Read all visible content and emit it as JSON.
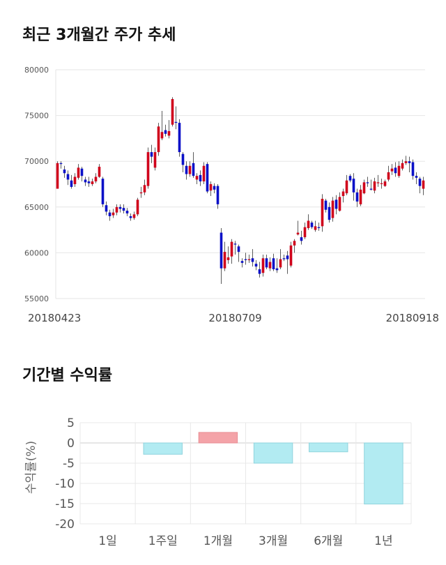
{
  "titles": {
    "price_trend": "최근 3개월간 주가 추세",
    "period_returns": "기간별 수익률"
  },
  "colors": {
    "up": "#d0021b",
    "down": "#0a10c8",
    "bar_positive": "#f4a3a8",
    "bar_negative": "#b2ebf2"
  },
  "chart_data": [
    {
      "type": "candlestick",
      "title": "최근 3개월간 주가 추세",
      "ylim": [
        55000,
        80000
      ],
      "y_ticks": [
        55000,
        60000,
        65000,
        70000,
        75000,
        80000
      ],
      "x_tick_labels": [
        {
          "label": "20180423",
          "index": 0
        },
        {
          "label": "20180709",
          "index": 51
        },
        {
          "label": "20180918",
          "index": 105
        }
      ],
      "grid": true,
      "candles": [
        [
          67000,
          69800,
          70000,
          67000
        ],
        [
          69800,
          69700,
          70000,
          69200
        ],
        [
          69100,
          68700,
          69500,
          68200
        ],
        [
          68600,
          68000,
          69000,
          67400
        ],
        [
          67900,
          67200,
          68500,
          67000
        ],
        [
          67500,
          68300,
          68700,
          67200
        ],
        [
          68200,
          69300,
          69700,
          68000
        ],
        [
          69200,
          68400,
          69400,
          67800
        ],
        [
          68000,
          67700,
          68300,
          67300
        ],
        [
          67800,
          67600,
          68300,
          67200
        ],
        [
          67500,
          67800,
          68100,
          67300
        ],
        [
          67800,
          68300,
          68700,
          67600
        ],
        [
          68300,
          69400,
          69700,
          68200
        ],
        [
          68100,
          65300,
          68300,
          65000
        ],
        [
          65200,
          64500,
          65600,
          64100
        ],
        [
          64400,
          64000,
          64700,
          63500
        ],
        [
          64100,
          64400,
          64800,
          63800
        ],
        [
          64400,
          65000,
          65300,
          64100
        ],
        [
          65000,
          64800,
          65300,
          64400
        ],
        [
          64900,
          64600,
          65300,
          64300
        ],
        [
          64600,
          64300,
          64900,
          64000
        ],
        [
          64000,
          63800,
          64300,
          63500
        ],
        [
          63800,
          64200,
          64500,
          63600
        ],
        [
          64200,
          65800,
          66000,
          64000
        ],
        [
          66500,
          66600,
          67200,
          66000
        ],
        [
          66600,
          67400,
          68000,
          66300
        ],
        [
          67300,
          71000,
          71500,
          67000
        ],
        [
          71000,
          70500,
          71800,
          69800
        ],
        [
          69300,
          71000,
          71500,
          69000
        ],
        [
          71000,
          73800,
          74200,
          70600
        ],
        [
          72500,
          73200,
          75500,
          72300
        ],
        [
          73400,
          73000,
          74000,
          72700
        ],
        [
          72800,
          73300,
          74500,
          72500
        ],
        [
          74000,
          76800,
          77000,
          73800
        ],
        [
          74300,
          74200,
          76000,
          73500
        ],
        [
          74200,
          71000,
          74600,
          70500
        ],
        [
          70800,
          69600,
          71000,
          68800
        ],
        [
          69500,
          68600,
          70000,
          68000
        ],
        [
          68600,
          69500,
          70000,
          68300
        ],
        [
          69800,
          68400,
          71000,
          68200
        ],
        [
          68000,
          68400,
          68700,
          67500
        ],
        [
          68500,
          67800,
          69000,
          67300
        ],
        [
          67800,
          69500,
          69900,
          67500
        ],
        [
          69700,
          66700,
          69900,
          66500
        ],
        [
          66800,
          67500,
          67800,
          66200
        ],
        [
          67300,
          66900,
          67600,
          66500
        ],
        [
          67300,
          65300,
          67500,
          64800
        ],
        [
          62200,
          58300,
          62700,
          56600
        ],
        [
          58300,
          60100,
          61200,
          58000
        ],
        [
          59200,
          59500,
          60700,
          58800
        ],
        [
          59600,
          61200,
          61500,
          58800
        ],
        [
          61000,
          60900,
          61300,
          59800
        ],
        [
          60700,
          60100,
          60900,
          59000
        ],
        [
          59100,
          58900,
          59400,
          58400
        ],
        [
          59300,
          59200,
          60000,
          58700
        ],
        [
          59200,
          59300,
          59800,
          58900
        ],
        [
          59400,
          59000,
          60400,
          58500
        ],
        [
          58800,
          58500,
          59200,
          58100
        ],
        [
          58200,
          57700,
          59000,
          57300
        ],
        [
          57800,
          59400,
          59800,
          57400
        ],
        [
          59400,
          58400,
          59800,
          58200
        ],
        [
          58300,
          59000,
          59500,
          58000
        ],
        [
          59400,
          58200,
          59900,
          58000
        ],
        [
          58300,
          58100,
          59400,
          57800
        ],
        [
          58400,
          59300,
          60400,
          58200
        ],
        [
          59400,
          59300,
          59800,
          59100
        ],
        [
          59700,
          59300,
          60200,
          57700
        ],
        [
          58600,
          60800,
          61200,
          58400
        ],
        [
          60800,
          61300,
          61500,
          60000
        ],
        [
          62000,
          62200,
          63500,
          61900
        ],
        [
          61700,
          61300,
          62400,
          60900
        ],
        [
          61700,
          62800,
          63300,
          61500
        ],
        [
          62700,
          63500,
          64200,
          62500
        ],
        [
          63300,
          62800,
          63500,
          62600
        ],
        [
          62500,
          62900,
          63500,
          62300
        ],
        [
          62800,
          62700,
          63300,
          62400
        ],
        [
          62900,
          65900,
          66400,
          62300
        ],
        [
          65700,
          64700,
          65900,
          64400
        ],
        [
          65000,
          63600,
          65500,
          63300
        ],
        [
          63800,
          65700,
          66100,
          63400
        ],
        [
          65800,
          64800,
          66300,
          64200
        ],
        [
          64600,
          66100,
          66600,
          64500
        ],
        [
          66200,
          66700,
          67000,
          65500
        ],
        [
          66500,
          67900,
          68500,
          66300
        ],
        [
          68400,
          67900,
          68600,
          67700
        ],
        [
          68100,
          66600,
          68700,
          65700
        ],
        [
          66600,
          65600,
          67000,
          65000
        ],
        [
          65300,
          66900,
          67400,
          65100
        ],
        [
          66500,
          67700,
          68000,
          66400
        ],
        [
          67700,
          67600,
          68300,
          67200
        ],
        [
          67000,
          66900,
          68000,
          66800
        ],
        [
          66800,
          67800,
          68200,
          66500
        ],
        [
          67600,
          67700,
          68500,
          67200
        ],
        [
          67600,
          67600,
          68100,
          67000
        ],
        [
          67300,
          67800,
          68000,
          67200
        ],
        [
          68000,
          68800,
          69500,
          67800
        ],
        [
          68900,
          69200,
          69700,
          68500
        ],
        [
          69300,
          68700,
          69900,
          68300
        ],
        [
          68400,
          69500,
          70000,
          68200
        ],
        [
          69200,
          69800,
          70200,
          69000
        ],
        [
          69800,
          70000,
          70600,
          69600
        ],
        [
          70000,
          69800,
          70500,
          68800
        ],
        [
          69900,
          68400,
          70200,
          68000
        ],
        [
          68400,
          68200,
          68800,
          67500
        ],
        [
          68100,
          67300,
          68300,
          66500
        ],
        [
          67000,
          67900,
          68300,
          66300
        ]
      ]
    },
    {
      "type": "bar",
      "title": "기간별 수익률",
      "ylabel": "수익률(%)",
      "categories": [
        "1일",
        "1주일",
        "1개월",
        "3개월",
        "6개월",
        "1년"
      ],
      "values": [
        0,
        -2.8,
        2.6,
        -5.0,
        -2.2,
        -15.1
      ],
      "ylim": [
        -20,
        5
      ],
      "y_ticks": [
        5,
        0,
        -5,
        -10,
        -15,
        -20
      ],
      "grid": true
    }
  ]
}
